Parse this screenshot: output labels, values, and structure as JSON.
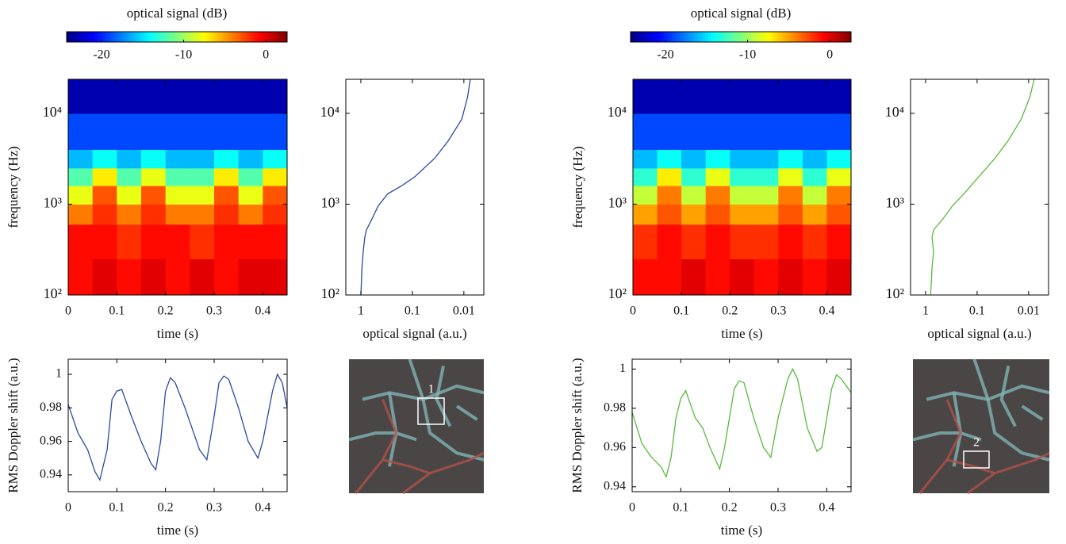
{
  "chart_data": [
    {
      "type": "colorbar",
      "title": "optical signal (dB)",
      "colormap": "jet",
      "xlim": [
        -24.25,
        2.6
      ],
      "xticks": [
        -20,
        -10,
        0
      ]
    },
    {
      "type": "heatmap",
      "xlabel": "time (s)",
      "ylabel": "frequency (Hz)",
      "xlim": [
        0,
        0.45
      ],
      "xticks": [
        0,
        0.1,
        0.2,
        0.3,
        0.4
      ],
      "ylog": true,
      "ylim": [
        100,
        23700
      ],
      "yticks": [
        {
          "value": 100,
          "label": "10²"
        },
        {
          "value": 1000,
          "label": "10³"
        },
        {
          "value": 10000,
          "label": "10⁴"
        }
      ],
      "x_bins": [
        0,
        0.05,
        0.1,
        0.15,
        0.2,
        0.25,
        0.3,
        0.35,
        0.4,
        0.45
      ],
      "y_bins": [
        100,
        250,
        600,
        1000,
        1600,
        2500,
        4000,
        10000,
        23700
      ],
      "z": [
        [
          -1,
          0,
          -1,
          0,
          -1,
          0,
          -1,
          0,
          0
        ],
        [
          -1,
          -1,
          -2,
          -1,
          -1,
          -2,
          -1,
          -1,
          -1
        ],
        [
          -4,
          -2,
          -4,
          -2,
          -4,
          -4,
          -2,
          -4,
          -2
        ],
        [
          -8,
          -3,
          -8,
          -3,
          -8,
          -8,
          -3,
          -8,
          -3
        ],
        [
          -12,
          -7,
          -12,
          -8,
          -12,
          -12,
          -7,
          -12,
          -7
        ],
        [
          -16,
          -14,
          -16,
          -14,
          -16,
          -16,
          -14,
          -16,
          -14
        ],
        [
          -19,
          -19,
          -19,
          -19,
          -19,
          -19,
          -19,
          -19,
          -19
        ],
        [
          -23,
          -23,
          -23,
          -23,
          -23,
          -23,
          -23,
          -23,
          -23
        ]
      ]
    },
    {
      "type": "line",
      "xlabel": "optical signal (a.u.)",
      "xlog": true,
      "xlim": [
        1.96,
        0.0041
      ],
      "xticks": [
        1,
        0.1,
        0.01
      ],
      "ylog": true,
      "ylim": [
        100,
        23700
      ],
      "yticks": [
        {
          "value": 100,
          "label": "10²"
        },
        {
          "value": 1000,
          "label": "10³"
        },
        {
          "value": 10000,
          "label": "10⁴"
        }
      ],
      "series": [
        {
          "color": "#2b4a9c",
          "y": [
            100,
            200,
            300,
            430,
            520,
            700,
            960,
            1300,
            1600,
            2000,
            3200,
            5000,
            8600,
            15000,
            23700
          ],
          "values": [
            1.0,
            0.95,
            0.9,
            0.84,
            0.78,
            0.6,
            0.46,
            0.3,
            0.16,
            0.09,
            0.037,
            0.02,
            0.011,
            0.0085,
            0.0075
          ]
        }
      ]
    },
    {
      "type": "line",
      "xlabel": "time (s)",
      "ylabel": "RMS Doppler shift (a.u.)",
      "xlim": [
        0,
        0.45
      ],
      "xticks": [
        0,
        0.1,
        0.2,
        0.3,
        0.4
      ],
      "ylim": [
        0.93,
        1.009
      ],
      "yticks": [
        0.94,
        0.96,
        0.98,
        1
      ],
      "series": [
        {
          "color": "#2b4a9c",
          "x": [
            0,
            0.02,
            0.04,
            0.055,
            0.065,
            0.08,
            0.09,
            0.1,
            0.11,
            0.13,
            0.15,
            0.17,
            0.18,
            0.19,
            0.2,
            0.21,
            0.22,
            0.24,
            0.27,
            0.285,
            0.3,
            0.31,
            0.32,
            0.33,
            0.35,
            0.37,
            0.39,
            0.4,
            0.42,
            0.43,
            0.44,
            0.45
          ],
          "values": [
            0.982,
            0.965,
            0.955,
            0.942,
            0.937,
            0.955,
            0.985,
            0.99,
            0.991,
            0.975,
            0.96,
            0.947,
            0.943,
            0.96,
            0.99,
            0.998,
            0.995,
            0.98,
            0.955,
            0.949,
            0.975,
            0.995,
            0.999,
            0.997,
            0.98,
            0.96,
            0.95,
            0.96,
            0.99,
            1.0,
            0.995,
            0.98
          ]
        }
      ]
    },
    {
      "type": "image",
      "label": "1"
    },
    {
      "type": "colorbar",
      "title": "optical signal (dB)",
      "colormap": "jet",
      "xlim": [
        -24.25,
        2.6
      ],
      "xticks": [
        -20,
        -10,
        0
      ]
    },
    {
      "type": "heatmap",
      "xlabel": "time (s)",
      "ylabel": "frequency (Hz)",
      "xlim": [
        0,
        0.45
      ],
      "xticks": [
        0,
        0.1,
        0.2,
        0.3,
        0.4
      ],
      "ylog": true,
      "ylim": [
        100,
        23700
      ],
      "yticks": [
        {
          "value": 100,
          "label": "10²"
        },
        {
          "value": 1000,
          "label": "10³"
        },
        {
          "value": 10000,
          "label": "10⁴"
        }
      ],
      "x_bins": [
        0,
        0.05,
        0.1,
        0.15,
        0.2,
        0.25,
        0.3,
        0.35,
        0.4,
        0.45
      ],
      "y_bins": [
        100,
        250,
        600,
        1000,
        1600,
        2500,
        4000,
        10000,
        23700
      ],
      "z": [
        [
          -1,
          -1,
          0,
          -1,
          0,
          -1,
          0,
          -1,
          0
        ],
        [
          -2,
          -1,
          -2,
          -1,
          -2,
          -2,
          -1,
          -2,
          -1
        ],
        [
          -5,
          -3,
          -5,
          -3,
          -5,
          -5,
          -3,
          -5,
          -3
        ],
        [
          -9,
          -4,
          -9,
          -4,
          -9,
          -9,
          -4,
          -9,
          -4
        ],
        [
          -13,
          -7,
          -13,
          -8,
          -13,
          -13,
          -8,
          -13,
          -8
        ],
        [
          -16,
          -14,
          -16,
          -14,
          -16,
          -16,
          -14,
          -16,
          -14
        ],
        [
          -19,
          -19,
          -19,
          -19,
          -19,
          -19,
          -19,
          -19,
          -19
        ],
        [
          -23,
          -23,
          -23,
          -23,
          -23,
          -23,
          -23,
          -23,
          -23
        ]
      ]
    },
    {
      "type": "line",
      "xlabel": "optical signal (a.u.)",
      "xlog": true,
      "xlim": [
        1.96,
        0.0041
      ],
      "xticks": [
        1,
        0.1,
        0.01
      ],
      "ylog": true,
      "ylim": [
        100,
        23700
      ],
      "yticks": [
        {
          "value": 100,
          "label": "10²"
        },
        {
          "value": 1000,
          "label": "10³"
        },
        {
          "value": 10000,
          "label": "10⁴"
        }
      ],
      "series": [
        {
          "color": "#5bb83f",
          "y": [
            100,
            200,
            300,
            430,
            520,
            700,
            960,
            1300,
            1700,
            2200,
            3200,
            5000,
            8600,
            15000,
            23700
          ],
          "values": [
            0.8,
            0.75,
            0.7,
            0.75,
            0.7,
            0.45,
            0.3,
            0.18,
            0.12,
            0.08,
            0.045,
            0.025,
            0.014,
            0.0095,
            0.0078
          ]
        }
      ]
    },
    {
      "type": "line",
      "xlabel": "time (s)",
      "ylabel": "RMS Doppler shift (a.u.)",
      "xlim": [
        0,
        0.45
      ],
      "xticks": [
        0,
        0.1,
        0.2,
        0.3,
        0.4
      ],
      "ylim": [
        0.9375,
        1.005
      ],
      "yticks": [
        0.94,
        0.96,
        0.98,
        1
      ],
      "series": [
        {
          "color": "#5bb83f",
          "x": [
            0,
            0.02,
            0.04,
            0.06,
            0.07,
            0.08,
            0.09,
            0.1,
            0.11,
            0.13,
            0.145,
            0.16,
            0.18,
            0.19,
            0.21,
            0.22,
            0.23,
            0.25,
            0.27,
            0.285,
            0.3,
            0.32,
            0.33,
            0.34,
            0.36,
            0.38,
            0.39,
            0.41,
            0.42,
            0.43,
            0.45
          ],
          "values": [
            0.978,
            0.962,
            0.955,
            0.95,
            0.945,
            0.955,
            0.975,
            0.985,
            0.989,
            0.975,
            0.97,
            0.96,
            0.949,
            0.96,
            0.99,
            0.994,
            0.993,
            0.975,
            0.96,
            0.955,
            0.975,
            0.995,
            1.0,
            0.995,
            0.97,
            0.958,
            0.96,
            0.99,
            0.997,
            0.995,
            0.988
          ]
        }
      ]
    },
    {
      "type": "image",
      "label": "2"
    }
  ]
}
